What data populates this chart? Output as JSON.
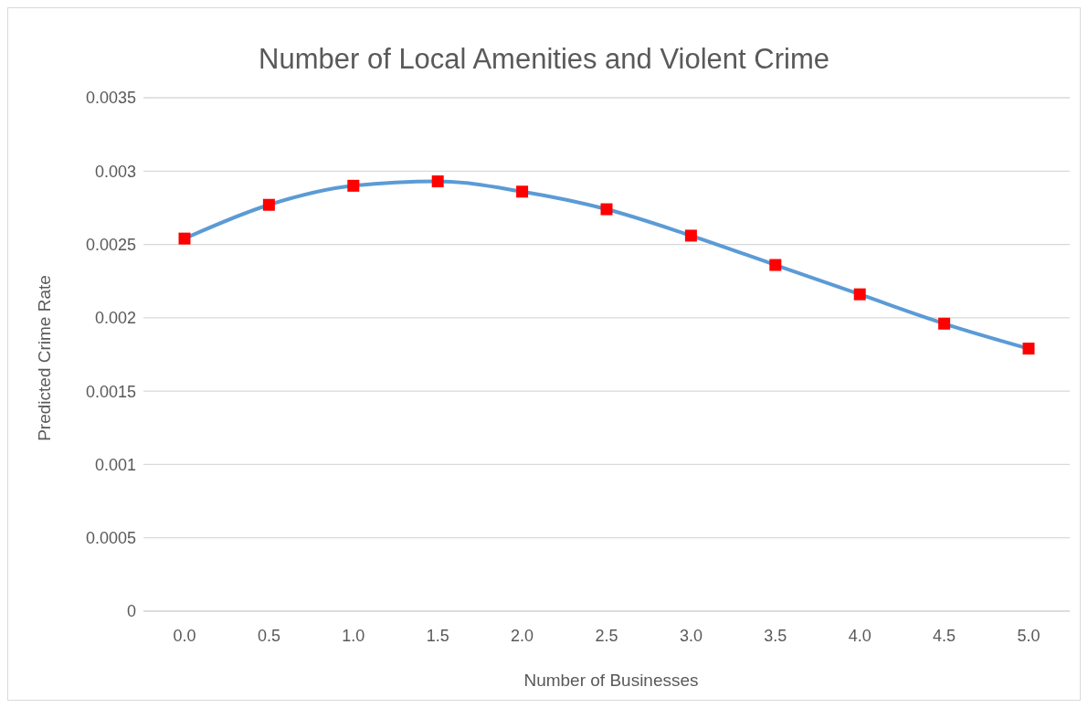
{
  "chart_data": {
    "type": "line",
    "title": "Number of Local Amenities and Violent Crime",
    "xlabel": "Number of Businesses",
    "ylabel": "Predicted Crime Rate",
    "categories": [
      "0.0",
      "0.5",
      "1.0",
      "1.5",
      "2.0",
      "2.5",
      "3.0",
      "3.5",
      "4.0",
      "4.5",
      "5.0"
    ],
    "series": [
      {
        "color": "#5b9bd5",
        "colors": [
          "#ff0000",
          "#ff0000",
          "#ff0000",
          "#ff0000",
          "#ff0000",
          "#ff0000",
          "#ff0000",
          "#ff0000",
          "#ff0000",
          "#ff0000",
          "#ff0000"
        ],
        "values": [
          0.00254,
          0.00277,
          0.0029,
          0.00293,
          0.00286,
          0.00274,
          0.00256,
          0.00236,
          0.00216,
          0.00196,
          0.00179
        ]
      }
    ],
    "ylim": [
      0,
      0.0035
    ],
    "yticks": [
      0,
      0.0005,
      0.001,
      0.0015,
      0.002,
      0.0025,
      0.003,
      0.0035
    ],
    "grid": "y",
    "marker": "square",
    "line_style": "solid"
  }
}
